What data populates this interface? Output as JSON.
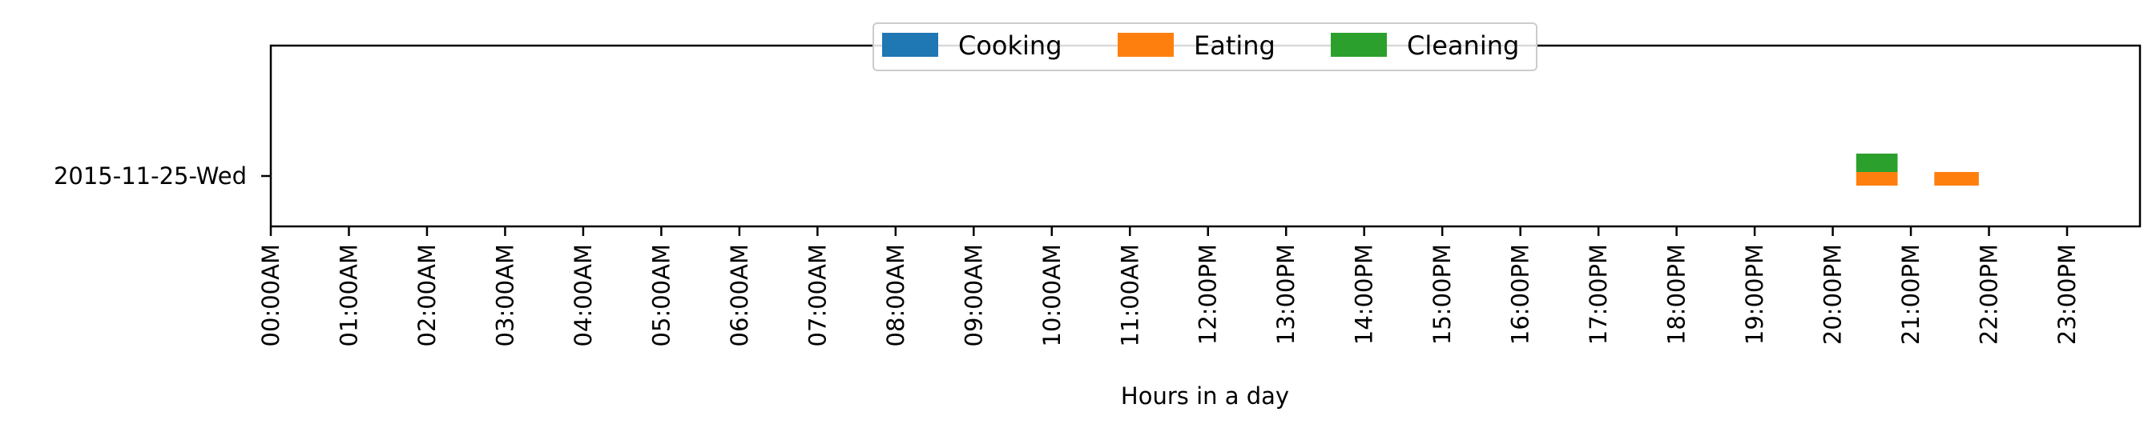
{
  "chart_data": {
    "type": "timeline",
    "title": "",
    "xlabel": "Hours in a day",
    "ylabel": "",
    "xlim": [
      0,
      24
    ],
    "x_ticks": [
      0,
      1,
      2,
      3,
      4,
      5,
      6,
      7,
      8,
      9,
      10,
      11,
      12,
      13,
      14,
      15,
      16,
      17,
      18,
      19,
      20,
      21,
      22,
      23
    ],
    "x_tick_labels": [
      "00:00AM",
      "01:00AM",
      "02:00AM",
      "03:00AM",
      "04:00AM",
      "05:00AM",
      "06:00AM",
      "07:00AM",
      "08:00AM",
      "09:00AM",
      "10:00AM",
      "11:00AM",
      "12:00PM",
      "13:00PM",
      "14:00PM",
      "15:00PM",
      "16:00PM",
      "17:00PM",
      "18:00PM",
      "19:00PM",
      "20:00PM",
      "21:00PM",
      "22:00PM",
      "23:00PM"
    ],
    "categories": [
      "2015-11-25-Wed"
    ],
    "legend_position": "top-center",
    "grid": false,
    "series": [
      {
        "name": "Cooking",
        "color": "#1f77b4",
        "intervals": []
      },
      {
        "name": "Eating",
        "color": "#ff7f0e",
        "intervals": [
          {
            "category": "2015-11-25-Wed",
            "start_hour": 20.3,
            "end_hour": 20.83
          },
          {
            "category": "2015-11-25-Wed",
            "start_hour": 21.3,
            "end_hour": 21.87
          }
        ]
      },
      {
        "name": "Cleaning",
        "color": "#2ca02c",
        "intervals": [
          {
            "category": "2015-11-25-Wed",
            "start_hour": 20.3,
            "end_hour": 20.83
          }
        ]
      }
    ]
  }
}
